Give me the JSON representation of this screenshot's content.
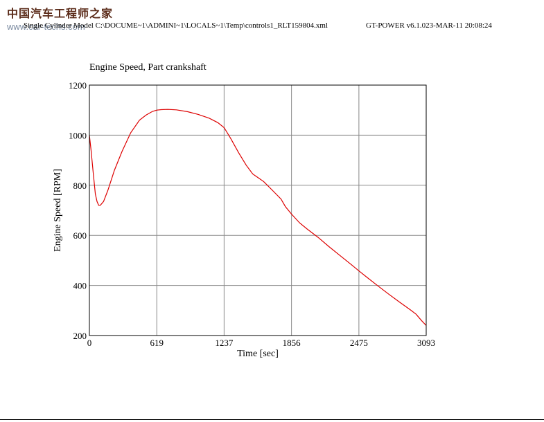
{
  "watermark": {
    "chinese": "中国汽车工程师之家",
    "url": "www.car-techs.com"
  },
  "header": {
    "file_path": "Single Cylinder Model C:\\DOCUME~1\\ADMINI~1\\LOCALS~1\\Temp\\controls1_RLT159804.xml",
    "version_info": "GT-POWER v6.1.023-MAR-11  20:08:24"
  },
  "chart_data": {
    "type": "line",
    "title": "Engine Speed, Part crankshaft",
    "xlabel": "Time [sec]",
    "ylabel": "Engine Speed [RPM]",
    "xlim": [
      0,
      3093
    ],
    "ylim": [
      200,
      1200
    ],
    "xticks": [
      0,
      619,
      1237,
      1856,
      2475,
      3093
    ],
    "yticks": [
      200,
      400,
      600,
      800,
      1000,
      1200
    ],
    "grid": true,
    "line_color": "#dd0000",
    "series": [
      {
        "x": [
          0,
          15,
          35,
          55,
          70,
          85,
          100,
          130,
          170,
          230,
          300,
          380,
          460,
          520,
          580,
          619,
          660,
          720,
          800,
          900,
          1000,
          1100,
          1180,
          1237,
          1300,
          1370,
          1440,
          1500,
          1550,
          1600,
          1680,
          1760,
          1800,
          1856,
          1930,
          2000,
          2100,
          2200,
          2300,
          2400,
          2475,
          2550,
          2650,
          2750,
          2850,
          2950,
          3000,
          3050,
          3093
        ],
        "y": [
          1000,
          940,
          850,
          765,
          735,
          720,
          720,
          735,
          780,
          860,
          935,
          1010,
          1060,
          1080,
          1095,
          1100,
          1102,
          1103,
          1101,
          1094,
          1083,
          1068,
          1050,
          1030,
          985,
          930,
          880,
          845,
          830,
          815,
          780,
          745,
          715,
          685,
          650,
          625,
          592,
          555,
          520,
          485,
          458,
          432,
          398,
          365,
          333,
          302,
          285,
          260,
          240
        ]
      }
    ]
  }
}
